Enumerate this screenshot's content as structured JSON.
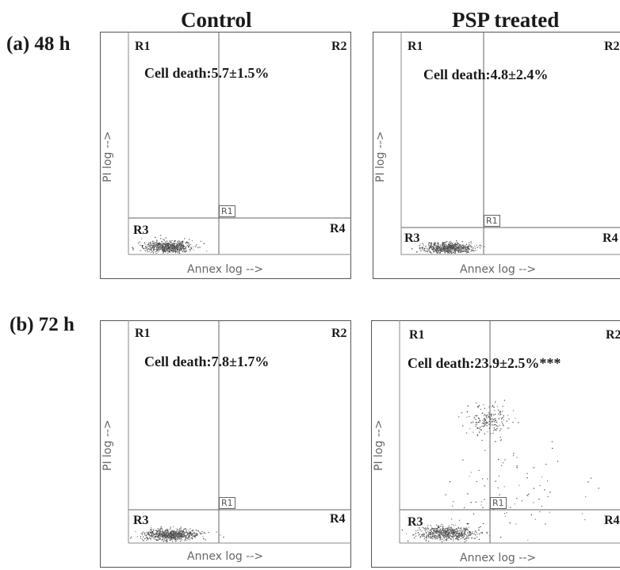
{
  "columns": [
    "Control",
    "PSP treated"
  ],
  "rows": [
    {
      "label": "(a) 48 h",
      "panels": [
        {
          "cell_death": "Cell death:5.7±1.5%",
          "regions": [
            "R1",
            "R2",
            "R3",
            "R4"
          ],
          "gate_label": "R1",
          "x_axis_label": "Annex log -->",
          "y_axis_label": "PI log -->"
        },
        {
          "cell_death": "Cell death:4.8±2.4%",
          "regions": [
            "R1",
            "R2",
            "R3",
            "R4"
          ],
          "gate_label": "R1",
          "x_axis_label": "Annex log -->",
          "y_axis_label": "PI log -->"
        }
      ]
    },
    {
      "label": "(b) 72 h",
      "panels": [
        {
          "cell_death": "Cell death:7.8±1.7%",
          "regions": [
            "R1",
            "R2",
            "R3",
            "R4"
          ],
          "gate_label": "R1",
          "x_axis_label": "Annex log -->",
          "y_axis_label": "PI log -->"
        },
        {
          "cell_death": "Cell death:23.9±2.5%***",
          "regions": [
            "R1",
            "R2",
            "R3",
            "R4"
          ],
          "gate_label": "R1",
          "x_axis_label": "Annex log -->",
          "y_axis_label": "PI log -->"
        }
      ]
    }
  ]
}
